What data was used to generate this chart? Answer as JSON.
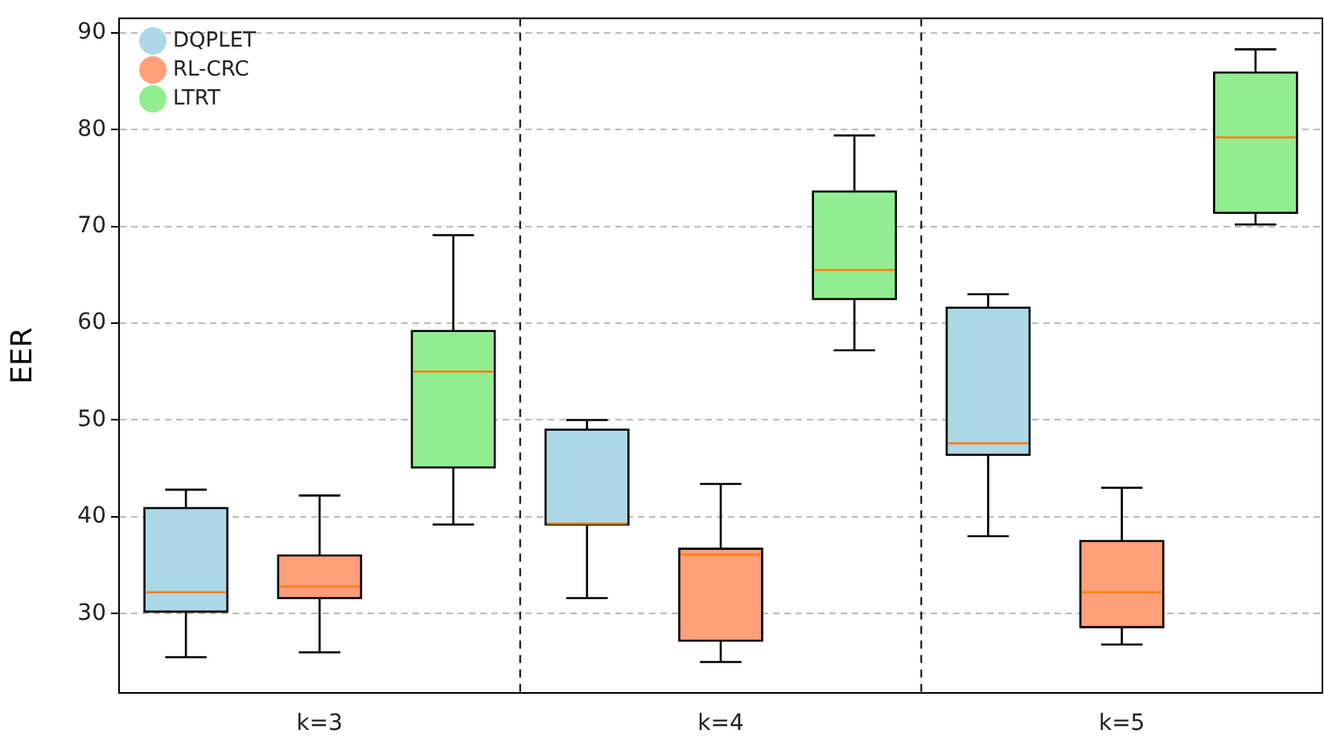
{
  "chart_data": {
    "type": "box",
    "ylabel": "EER",
    "categories": [
      "k=3",
      "k=4",
      "k=5"
    ],
    "ylim": [
      21.8,
      91.5
    ],
    "yticks": [
      30,
      40,
      50,
      60,
      70,
      80,
      90
    ],
    "grid": "y",
    "legend": "top left",
    "series": [
      {
        "name": "DQPLET",
        "color": "#add8e6",
        "boxes": [
          {
            "low": 25.5,
            "q1": 30.2,
            "median": 32.2,
            "q3": 40.9,
            "high": 42.8
          },
          {
            "low": 31.6,
            "q1": 39.2,
            "median": 39.3,
            "q3": 49,
            "high": 50
          },
          {
            "low": 38,
            "q1": 46.4,
            "median": 47.6,
            "q3": 61.6,
            "high": 63
          }
        ]
      },
      {
        "name": "RL-CRC",
        "color": "#ffa07a",
        "boxes": [
          {
            "low": 26,
            "q1": 31.6,
            "median": 32.8,
            "q3": 36,
            "high": 42.2
          },
          {
            "low": 25,
            "q1": 27.2,
            "median": 36.1,
            "q3": 36.7,
            "high": 43.4
          },
          {
            "low": 26.8,
            "q1": 28.6,
            "median": 32.2,
            "q3": 37.5,
            "high": 43
          }
        ]
      },
      {
        "name": "LTRT",
        "color": "#90ee90",
        "boxes": [
          {
            "low": 39.2,
            "q1": 45.1,
            "median": 55,
            "q3": 59.2,
            "high": 69.1
          },
          {
            "low": 57.2,
            "q1": 62.5,
            "median": 65.5,
            "q3": 73.6,
            "high": 79.4
          },
          {
            "low": 70.2,
            "q1": 71.4,
            "median": 79.2,
            "q3": 85.9,
            "high": 88.3
          }
        ]
      }
    ]
  }
}
